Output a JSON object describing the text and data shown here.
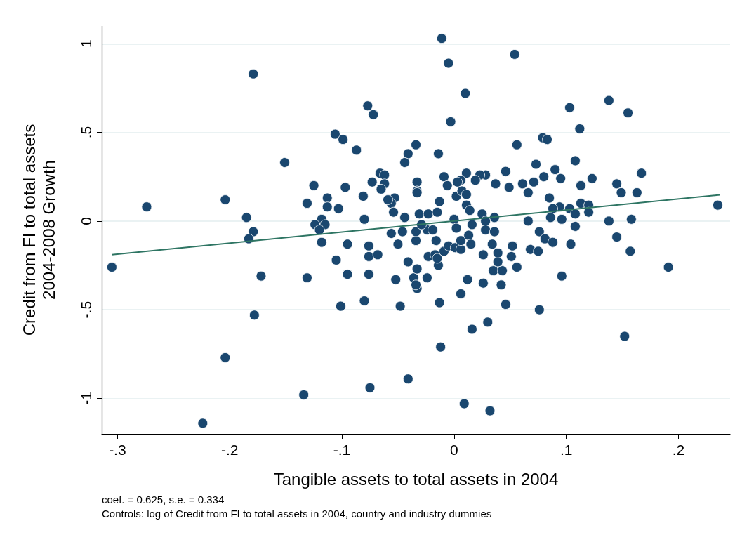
{
  "chart_data": {
    "type": "scatter",
    "xlabel": "Tangible assets to total assets in 2004",
    "ylabel": "Credit from FI to total assets\n2004-2008 Growth",
    "annotations": [
      "coef. = 0.625, s.e. = 0.334",
      "Controls: log of Credit from FI to total assets in 2004, country and industry dummies"
    ],
    "xlim": [
      -0.314,
      0.246
    ],
    "xticks": [
      {
        "value": -0.3,
        "label": "-.3"
      },
      {
        "value": -0.2,
        "label": "-.2"
      },
      {
        "value": -0.1,
        "label": "-.1"
      },
      0,
      {
        "value": 0.1,
        "label": ".1"
      },
      {
        "value": 0.2,
        "label": ".2"
      }
    ],
    "ylim": [
      -1.2,
      1.1
    ],
    "yticks": [
      -1,
      {
        "value": -0.5,
        "label": "-.5"
      },
      0,
      {
        "value": 0.5,
        "label": ".5"
      },
      1
    ],
    "grid": "y",
    "marker": "circle",
    "series": [
      {
        "type": "scatter",
        "color": "#1a476f",
        "x": [
          -0.011,
          -0.005,
          0.054,
          -0.179,
          0.01,
          -0.077,
          -0.072,
          -0.003,
          0.138,
          0.155,
          0.103,
          0.112,
          0.079,
          0.083,
          -0.106,
          -0.099,
          -0.087,
          -0.151,
          -0.034,
          -0.041,
          -0.044,
          -0.014,
          0.056,
          0.073,
          0.09,
          0.108,
          0.167,
          0.145,
          0.149,
          0.163,
          0.123,
          0.113,
          0.095,
          0.08,
          0.071,
          0.061,
          0.046,
          0.028,
          0.023,
          0.019,
          0.037,
          0.049,
          0.066,
          0.011,
          0.006,
          0.003,
          -0.009,
          -0.006,
          -0.033,
          -0.033,
          -0.033,
          -0.066,
          -0.062,
          -0.062,
          -0.073,
          -0.065,
          -0.081,
          -0.097,
          -0.125,
          -0.113,
          -0.113,
          -0.131,
          -0.103,
          -0.053,
          -0.056,
          -0.054,
          -0.059,
          -0.013,
          -0.031,
          -0.023,
          -0.015,
          0.002,
          0.007,
          0.011,
          0.011,
          0.014,
          0.025,
          -0.044,
          0.036,
          0.085,
          0.094,
          0.088,
          0.103,
          0.108,
          0.113,
          0.12,
          0.12,
          0.086,
          0.096,
          0.138,
          0.158,
          0.235,
          -0.204,
          -0.274,
          -0.185,
          -0.08,
          -0.118,
          0.0,
          0.028,
          0.066,
          -0.179,
          -0.183,
          -0.305,
          -0.172,
          -0.124,
          -0.115,
          -0.12,
          -0.118,
          -0.095,
          -0.076,
          -0.076,
          -0.068,
          -0.105,
          -0.095,
          -0.076,
          -0.131,
          -0.08,
          -0.101,
          -0.178,
          -0.204,
          -0.224,
          -0.134,
          -0.075,
          -0.041,
          -0.048,
          -0.013,
          0.046,
          0.076,
          0.03,
          0.016,
          -0.012,
          0.009,
          0.032,
          -0.052,
          -0.036,
          -0.033,
          -0.034,
          -0.024,
          -0.041,
          -0.033,
          -0.014,
          -0.023,
          -0.017,
          -0.015,
          0.012,
          0.006,
          0.026,
          0.042,
          0.035,
          0.043,
          0.056,
          0.039,
          0.026,
          0.051,
          0.052,
          0.039,
          0.034,
          0.068,
          0.075,
          0.076,
          0.081,
          -0.05,
          -0.034,
          -0.016,
          -0.009,
          -0.005,
          0.001,
          0.006,
          0.006,
          0.013,
          0.015,
          0.002,
          0.028,
          0.036,
          -0.056,
          -0.046,
          -0.034,
          -0.024,
          -0.019,
          -0.029,
          0.016,
          0.108,
          0.088,
          0.104,
          0.145,
          0.157,
          0.191,
          0.096,
          0.152
        ],
        "values": [
          1.03,
          0.89,
          0.94,
          0.83,
          0.72,
          0.65,
          0.6,
          0.56,
          0.68,
          0.61,
          0.64,
          0.52,
          0.47,
          0.46,
          0.49,
          0.46,
          0.4,
          0.33,
          0.43,
          0.38,
          0.33,
          0.38,
          0.43,
          0.32,
          0.29,
          0.34,
          0.27,
          0.21,
          0.16,
          0.16,
          0.24,
          0.2,
          0.24,
          0.25,
          0.22,
          0.21,
          0.28,
          0.26,
          0.26,
          0.23,
          0.21,
          0.19,
          0.16,
          0.27,
          0.23,
          0.22,
          0.25,
          0.2,
          0.22,
          0.17,
          0.16,
          0.27,
          0.26,
          0.21,
          0.22,
          0.18,
          0.14,
          0.19,
          0.2,
          0.13,
          0.08,
          0.1,
          0.07,
          0.13,
          0.1,
          0.05,
          0.12,
          0.11,
          0.04,
          0.04,
          0.05,
          0.14,
          0.17,
          0.15,
          0.09,
          0.06,
          0.04,
          0.02,
          0.02,
          0.13,
          0.08,
          0.07,
          0.07,
          0.04,
          0.1,
          0.09,
          0.05,
          0.02,
          0.01,
          0.0,
          0.01,
          0.09,
          0.12,
          0.08,
          0.02,
          0.01,
          0.01,
          0.01,
          0.0,
          0.0,
          -0.06,
          -0.1,
          -0.26,
          -0.31,
          -0.02,
          -0.02,
          -0.05,
          -0.12,
          -0.13,
          -0.14,
          -0.2,
          -0.19,
          -0.22,
          -0.3,
          -0.3,
          -0.32,
          -0.45,
          -0.48,
          -0.53,
          -0.77,
          -1.14,
          -0.98,
          -0.94,
          -0.89,
          -0.48,
          -0.46,
          -0.47,
          -0.5,
          -0.57,
          -0.61,
          -0.71,
          -1.03,
          -1.07,
          -0.33,
          -0.32,
          -0.38,
          -0.36,
          -0.32,
          -0.23,
          -0.27,
          -0.25,
          -0.2,
          -0.19,
          -0.21,
          -0.33,
          -0.41,
          -0.35,
          -0.36,
          -0.28,
          -0.28,
          -0.26,
          -0.23,
          -0.19,
          -0.2,
          -0.14,
          -0.18,
          -0.13,
          -0.16,
          -0.17,
          -0.06,
          -0.1,
          -0.13,
          -0.11,
          -0.11,
          -0.17,
          -0.14,
          -0.15,
          -0.16,
          -0.11,
          -0.08,
          -0.13,
          -0.04,
          -0.05,
          -0.06,
          -0.07,
          -0.06,
          -0.06,
          -0.05,
          -0.05,
          -0.02,
          -0.02,
          -0.03,
          -0.12,
          -0.13,
          -0.09,
          -0.17,
          -0.26,
          -0.31,
          -0.65
        ]
      },
      {
        "type": "line",
        "color": "#2e7563",
        "marker": "none",
        "line_style": "solid",
        "x": [
          -0.305,
          0.237
        ],
        "values": [
          -0.19,
          0.148
        ]
      }
    ]
  }
}
